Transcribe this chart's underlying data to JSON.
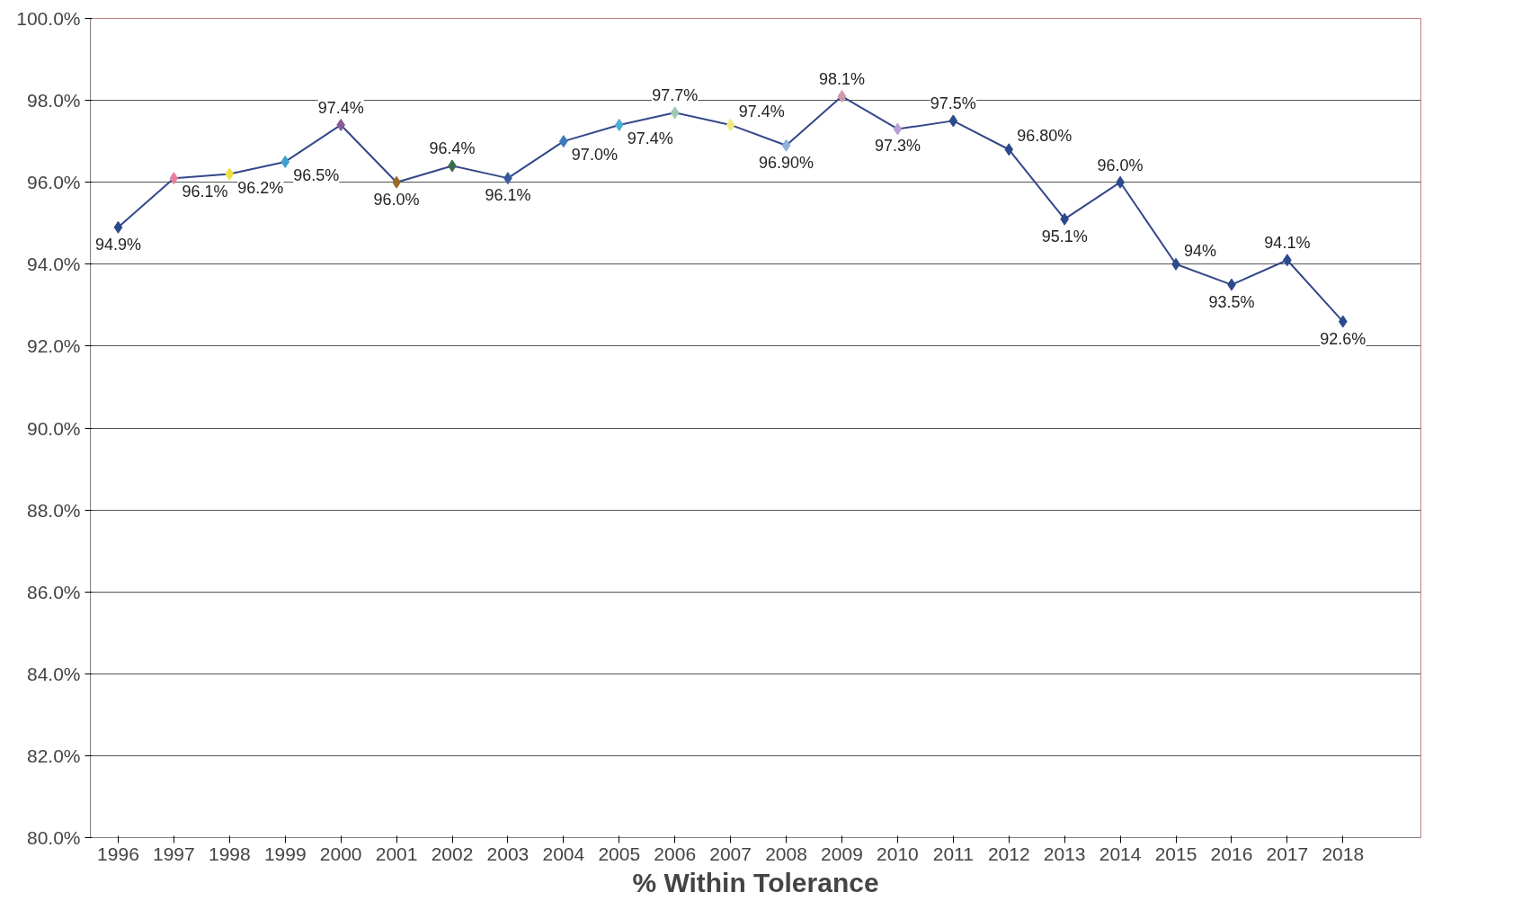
{
  "chart_data": {
    "type": "line",
    "xlabel": "% Within Tolerance",
    "categories": [
      "1996",
      "1997",
      "1998",
      "1999",
      "2000",
      "2001",
      "2002",
      "2003",
      "2004",
      "2005",
      "2006",
      "2007",
      "2008",
      "2009",
      "2010",
      "2011",
      "2012",
      "2013",
      "2014",
      "2015",
      "2016",
      "2017",
      "2018"
    ],
    "series": [
      {
        "color": "#34478a",
        "values": [
          94.9,
          96.1,
          96.2,
          96.5,
          97.4,
          96.0,
          96.4,
          96.1,
          97.0,
          97.4,
          97.7,
          97.4,
          96.9,
          98.1,
          97.3,
          97.5,
          96.8,
          95.1,
          96.0,
          94.0,
          93.5,
          94.1,
          92.6
        ],
        "colors": [
          "#2a4a8c",
          "#e77fa0",
          "#f0e040",
          "#3fa0d0",
          "#8a5a9a",
          "#9a6a2a",
          "#3a6a4a",
          "#3a5aa0",
          "#3a7ac0",
          "#4aaed8",
          "#a0c8b0",
          "#f0e880",
          "#90b0d8",
          "#d098a8",
          "#b8a0d0",
          "#2a4a8c",
          "#2a4a8c",
          "#2a4a8c",
          "#2a4a8c",
          "#2a4a8c",
          "#2a4a8c",
          "#2a4a8c",
          "#2a4a8c"
        ],
        "value_labels": [
          "94.9%",
          "96.1%",
          "96.2%",
          "96.5%",
          "97.4%",
          "96.0%",
          "96.4%",
          "96.1%",
          "97.0%",
          "97.4%",
          "97.7%",
          "97.4%",
          "96.90%",
          "98.1%",
          "97.3%",
          "97.5%",
          "96.80%",
          "95.1%",
          "96.0%",
          "94%",
          "93.5%",
          "94.1%",
          "92.6%"
        ]
      }
    ],
    "ylim": [
      80,
      100
    ],
    "yticks": [
      {
        "value": 80,
        "label": "80.0%"
      },
      {
        "value": 82,
        "label": "82.0%"
      },
      {
        "value": 84,
        "label": "84.0%"
      },
      {
        "value": 86,
        "label": "86.0%"
      },
      {
        "value": 88,
        "label": "88.0%"
      },
      {
        "value": 90,
        "label": "90.0%"
      },
      {
        "value": 92,
        "label": "92.0%"
      },
      {
        "value": 94,
        "label": "94.0%"
      },
      {
        "value": 96,
        "label": "96.0%"
      },
      {
        "value": 98,
        "label": "98.0%"
      },
      {
        "value": 100,
        "label": "100.0%"
      }
    ],
    "grid": "y",
    "marker": "diamond",
    "line_style": "solid"
  }
}
